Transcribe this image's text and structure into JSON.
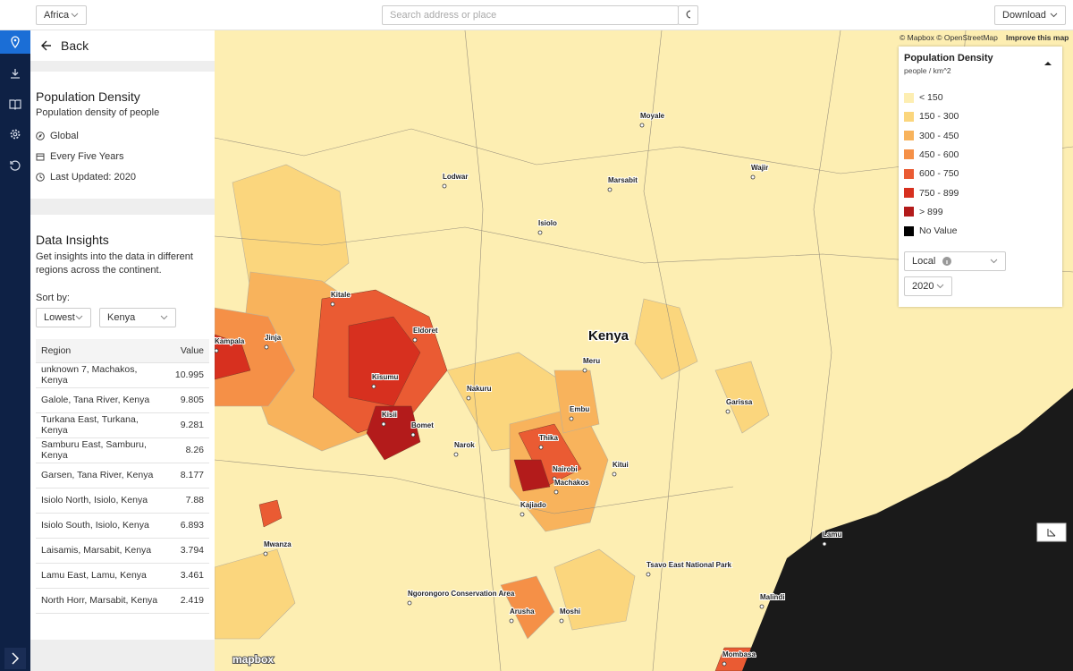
{
  "top_bar": {
    "region_select": "Africa",
    "search_placeholder": "Search address or place",
    "download": "Download"
  },
  "sidebar": {
    "back": "Back",
    "dataset": {
      "title": "Population Density",
      "description": "Population density of people",
      "meta": [
        "Global",
        "Every Five Years",
        "Last Updated: 2020"
      ]
    },
    "insights": {
      "title": "Data Insights",
      "description": "Get insights into the data in different regions across the continent.",
      "sort_label": "Sort by:",
      "sort_order": "Lowest",
      "country": "Kenya",
      "table": {
        "columns": [
          "Region",
          "Value"
        ],
        "rows": [
          [
            "unknown 7, Machakos, Kenya",
            10.995
          ],
          [
            "Galole, Tana River, Kenya",
            9.805
          ],
          [
            "Turkana East, Turkana, Kenya",
            9.281
          ],
          [
            "Samburu East, Samburu, Kenya",
            8.26
          ],
          [
            "Garsen, Tana River, Kenya",
            8.177
          ],
          [
            "Isiolo North, Isiolo, Kenya",
            7.88
          ],
          [
            "Isiolo South, Isiolo, Kenya",
            6.893
          ],
          [
            "Laisamis, Marsabit, Kenya",
            3.794
          ],
          [
            "Lamu East, Lamu, Kenya",
            3.461
          ],
          [
            "North Horr, Marsabit, Kenya",
            2.419
          ]
        ]
      }
    }
  },
  "legend": {
    "title": "Population Density",
    "unit": "people / km^2",
    "items": [
      {
        "label": "< 150",
        "color": "#fdeeb2"
      },
      {
        "label": "150 - 300",
        "color": "#fbd67d"
      },
      {
        "label": "300 - 450",
        "color": "#f8b35c"
      },
      {
        "label": "450 - 600",
        "color": "#f59047"
      },
      {
        "label": "600 - 750",
        "color": "#ea5b33"
      },
      {
        "label": "750 - 899",
        "color": "#d7301f"
      },
      {
        "label": "> 899",
        "color": "#b31b1b"
      },
      {
        "label": "No Value",
        "color": "#000000"
      }
    ],
    "mode": "Local",
    "year": "2020"
  },
  "map": {
    "country_label": "Kenya",
    "places": [
      "Kampala",
      "Jinja",
      "Eldoret",
      "Kisumu",
      "Kisii",
      "Nakuru",
      "Nairobi",
      "Machakos",
      "Meru",
      "Embu",
      "Thika",
      "Isiolo",
      "Marsabit",
      "Moyale",
      "Wajir",
      "Garissa",
      "Lodwar",
      "Kitale",
      "Bomet",
      "Narok",
      "Kajiado",
      "Kitui",
      "Arusha",
      "Moshi",
      "Mombasa",
      "Malindi",
      "Lamu",
      "Mwanza",
      "Tsavo East National Park",
      "Ngorongoro Conservation Area"
    ],
    "attribution": "© Mapbox © OpenStreetMap",
    "improve": "Improve this map",
    "logo": "mapbox"
  }
}
